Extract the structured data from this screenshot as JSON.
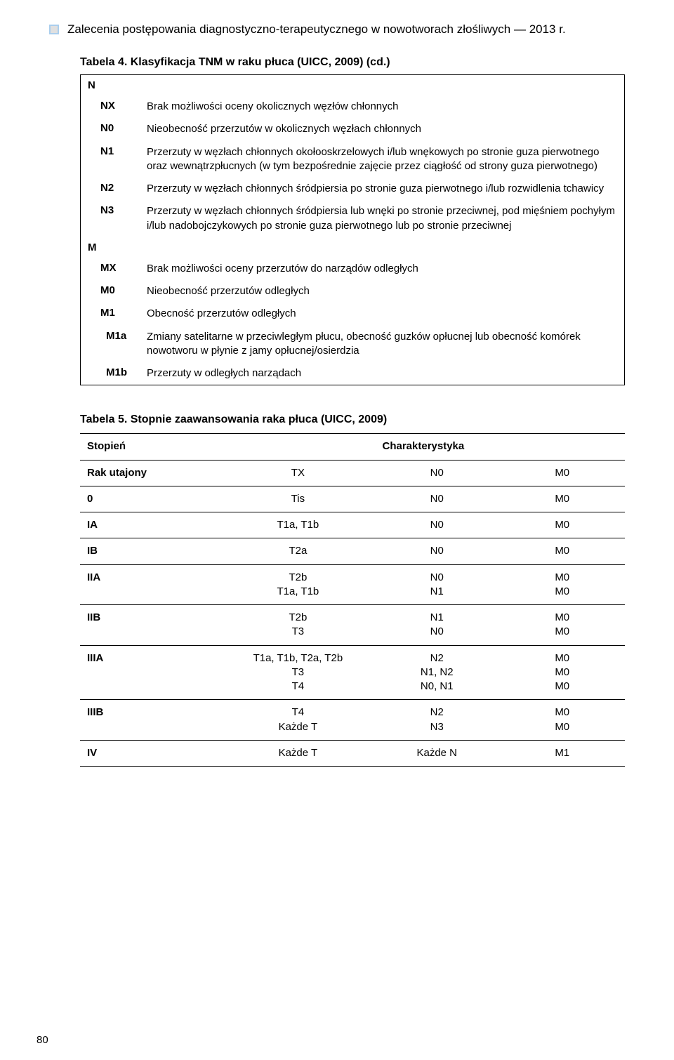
{
  "header": {
    "title": "Zalecenia postępowania diagnostyczno-terapeutycznego w nowotworach złośliwych — 2013 r."
  },
  "table4": {
    "title": "Tabela 4. Klasyfikacja TNM w raku płuca (UICC, 2009) (cd.)",
    "section_N": "N",
    "rows_N": [
      {
        "code": "NX",
        "desc": "Brak możliwości oceny okolicznych węzłów chłonnych"
      },
      {
        "code": "N0",
        "desc": "Nieobecność przerzutów w okolicznych węzłach chłonnych"
      },
      {
        "code": "N1",
        "desc": "Przerzuty w węzłach chłonnych okołooskrzelowych i/lub wnękowych po stronie guza pierwotnego oraz wewnątrzpłucnych (w tym bezpośrednie zajęcie przez ciągłość od strony guza pierwotnego)"
      },
      {
        "code": "N2",
        "desc": "Przerzuty w węzłach chłonnych śródpiersia po stronie guza pierwotnego i/lub rozwidlenia tchawicy"
      },
      {
        "code": "N3",
        "desc": "Przerzuty w węzłach chłonnych śródpiersia lub wnęki po stronie przeciwnej, pod mięśniem pochyłym i/lub nadobojczykowych po stronie guza pierwotnego lub po stronie przeciwnej"
      }
    ],
    "section_M": "M",
    "rows_M": [
      {
        "code": "MX",
        "desc": "Brak możliwości oceny przerzutów do narządów odległych"
      },
      {
        "code": "M0",
        "desc": "Nieobecność przerzutów odległych"
      },
      {
        "code": "M1",
        "desc": "Obecność przerzutów odległych"
      },
      {
        "code": "M1a",
        "indent": true,
        "desc": "Zmiany satelitarne w przeciwległym płucu, obecność guzków opłucnej lub obecność komórek nowotworu w płynie z jamy opłucnej/osierdzia"
      },
      {
        "code": "M1b",
        "indent": true,
        "desc": "Przerzuty w odległych narządach"
      }
    ]
  },
  "table5": {
    "title": "Tabela 5. Stopnie zaawansowania raka płuca (UICC, 2009)",
    "headers": {
      "stage": "Stopień",
      "char": "Charakterystyka"
    },
    "rows": [
      {
        "stage": "Rak utajony",
        "c1": "TX",
        "c2": "N0",
        "c3": "M0"
      },
      {
        "stage": "0",
        "c1": "Tis",
        "c2": "N0",
        "c3": "M0"
      },
      {
        "stage": "IA",
        "c1": "T1a, T1b",
        "c2": "N0",
        "c3": "M0"
      },
      {
        "stage": "IB",
        "c1": "T2a",
        "c2": "N0",
        "c3": "M0"
      },
      {
        "stage": "IIA",
        "c1": "T2b\nT1a, T1b",
        "c2": "N0\nN1",
        "c3": "M0\nM0"
      },
      {
        "stage": "IIB",
        "c1": "T2b\nT3",
        "c2": "N1\nN0",
        "c3": "M0\nM0"
      },
      {
        "stage": "IIIA",
        "c1": "T1a, T1b, T2a, T2b\nT3\nT4",
        "c2": "N2\nN1, N2\nN0, N1",
        "c3": "M0\nM0\nM0"
      },
      {
        "stage": "IIIB",
        "c1": "T4\nKażde T",
        "c2": "N2\nN3",
        "c3": "M0\nM0"
      },
      {
        "stage": "IV",
        "c1": "Każde T",
        "c2": "Każde N",
        "c3": "M1"
      }
    ]
  },
  "page_number": "80",
  "colors": {
    "text": "#000000",
    "border": "#000000",
    "bg": "#ffffff",
    "marker_fill": "#e0e0e0",
    "marker_border": "#aaceed"
  },
  "col_widths": {
    "stage": "26%",
    "c1": "28%",
    "c2": "23%",
    "c3": "23%"
  }
}
